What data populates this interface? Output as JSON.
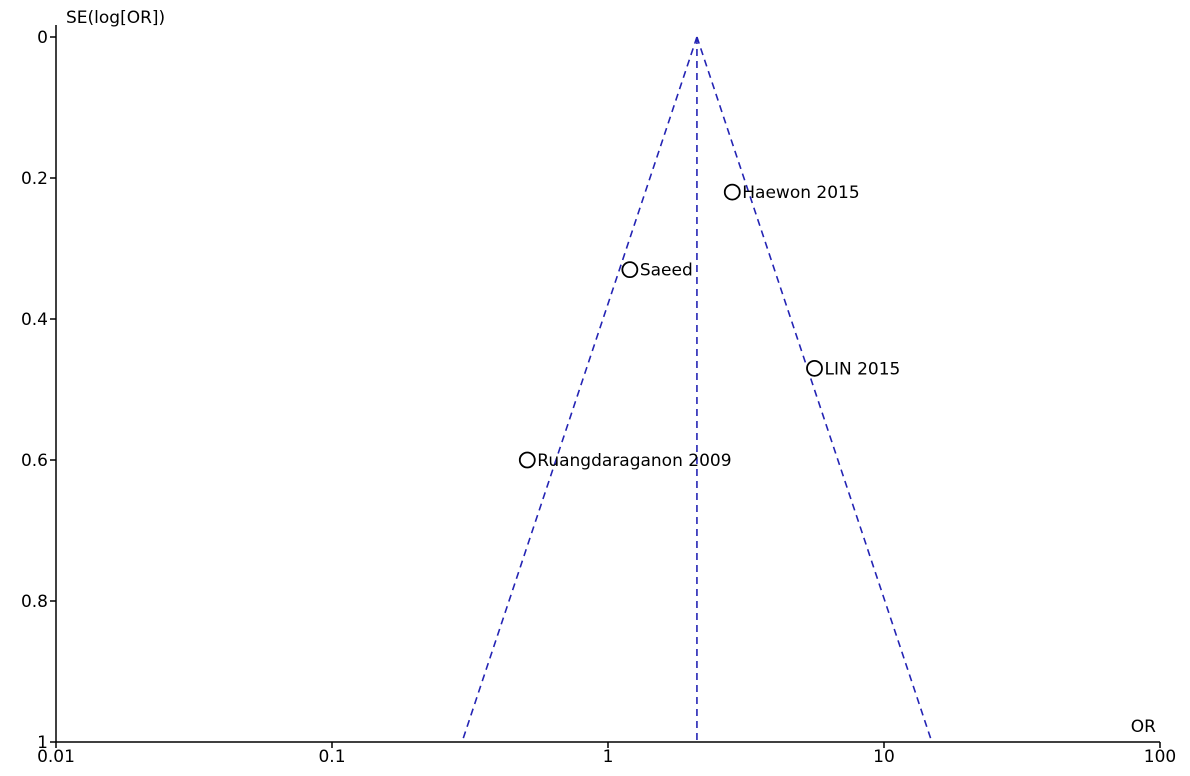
{
  "chart_data": {
    "type": "scatter",
    "subtype": "funnel-plot",
    "title": "",
    "xlabel": "OR",
    "ylabel": "SE(log[OR])",
    "x_scale": "log",
    "xlim": [
      0.01,
      100
    ],
    "ylim": [
      0,
      1
    ],
    "y_inverted": true,
    "x_ticks": [
      "0.01",
      "0.1",
      "1",
      "10",
      "100"
    ],
    "y_ticks": [
      "0",
      "0.2",
      "0.4",
      "0.6",
      "0.8",
      "1"
    ],
    "grid": false,
    "legend": "none",
    "colors": {
      "funnel": "#2424b4",
      "points": "#000000",
      "axes": "#000000"
    },
    "pooled_or": 2.1,
    "points": [
      {
        "label": "Haewon 2015",
        "or": 2.82,
        "se": 0.22
      },
      {
        "label": "Saeed",
        "or": 1.2,
        "se": 0.33
      },
      {
        "label": "LIN 2015",
        "or": 5.6,
        "se": 0.47
      },
      {
        "label": "Ruangdaraganon 2009",
        "or": 0.51,
        "se": 0.6
      }
    ]
  }
}
